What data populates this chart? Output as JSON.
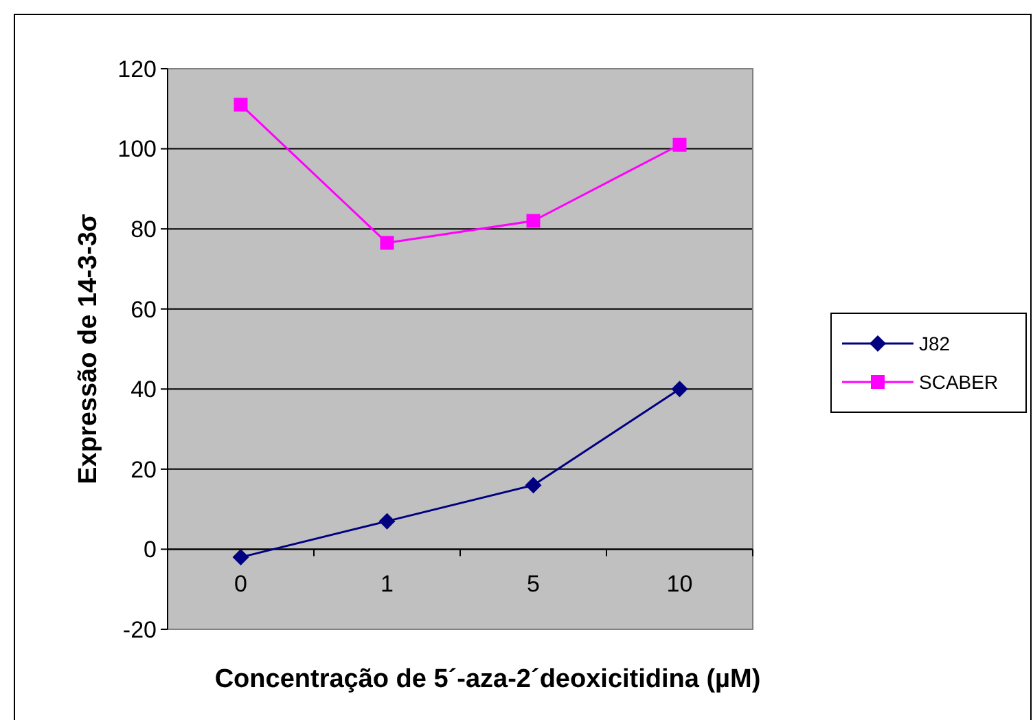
{
  "chart_data": {
    "type": "line",
    "xlabel": "Concentração de 5´-aza-2´deoxicitidina (µM)",
    "ylabel": "Expressão de 14-3-3σ",
    "categories": [
      "0",
      "1",
      "5",
      "10"
    ],
    "ylim": [
      -20,
      120
    ],
    "yticks": [
      -20,
      0,
      20,
      40,
      60,
      80,
      100,
      120
    ],
    "grid": "y",
    "legend": "right",
    "series": [
      {
        "name": "J82",
        "color": "#000080",
        "marker": "diamond",
        "values": [
          -2,
          7,
          16,
          40
        ]
      },
      {
        "name": "SCABER",
        "color": "#ff00ff",
        "marker": "square",
        "values": [
          111,
          76.5,
          82,
          101
        ]
      }
    ]
  }
}
